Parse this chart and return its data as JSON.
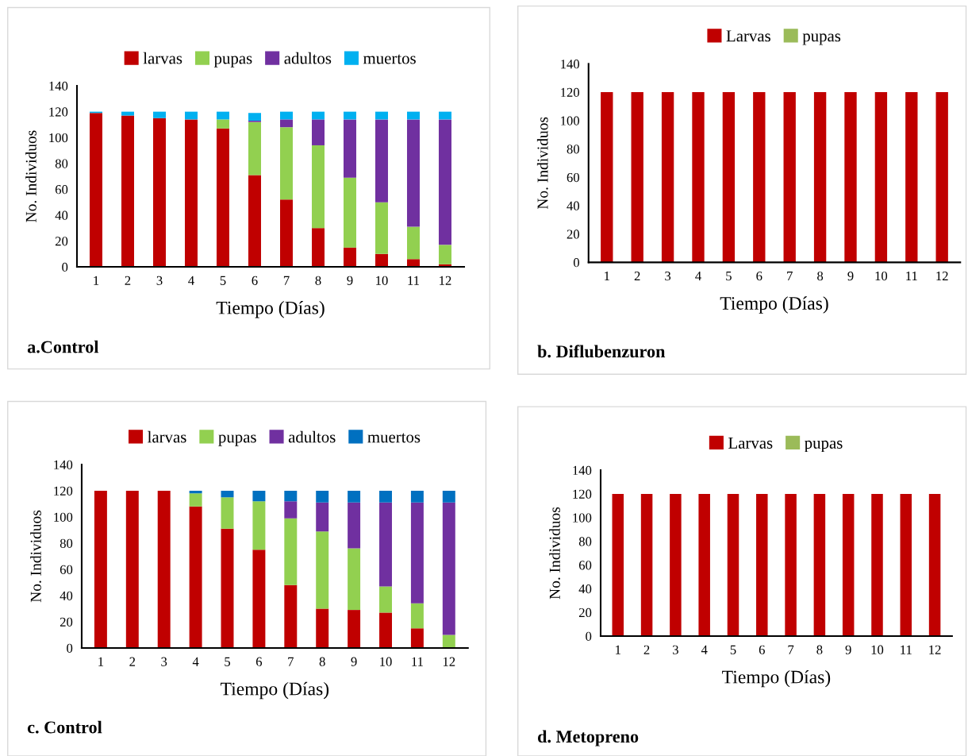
{
  "chart_data": [
    {
      "type": "bar",
      "stacked": true,
      "categories": [
        "1",
        "2",
        "3",
        "4",
        "5",
        "6",
        "7",
        "8",
        "9",
        "10",
        "11",
        "12"
      ],
      "xlabel": "Tiempo (Días)",
      "ylabel": "No. Individuos",
      "ylim": [
        0,
        140
      ],
      "yticks": [
        0,
        20,
        40,
        60,
        80,
        100,
        120,
        140
      ],
      "legend": "top",
      "grid": false,
      "annotations": [
        "a.Control"
      ],
      "series": [
        {
          "name": "larvas",
          "color": "#c00000",
          "values": [
            119,
            117,
            115,
            114,
            107,
            71,
            52,
            30,
            15,
            10,
            6,
            2
          ]
        },
        {
          "name": "pupas",
          "color": "#92d050",
          "values": [
            0,
            0,
            0,
            0,
            7,
            41,
            56,
            64,
            54,
            40,
            25,
            15
          ]
        },
        {
          "name": "adultos",
          "color": "#7030a0",
          "values": [
            0,
            0,
            0,
            0,
            0,
            1,
            6,
            20,
            45,
            64,
            83,
            97
          ]
        },
        {
          "name": "muertos",
          "color": "#00b0f0",
          "values": [
            1,
            3,
            5,
            6,
            6,
            6,
            6,
            6,
            6,
            6,
            6,
            6
          ]
        }
      ]
    },
    {
      "type": "bar",
      "stacked": true,
      "categories": [
        "1",
        "2",
        "3",
        "4",
        "5",
        "6",
        "7",
        "8",
        "9",
        "10",
        "11",
        "12"
      ],
      "xlabel": "Tiempo (Días)",
      "ylabel": "No. Individuos",
      "ylim": [
        0,
        140
      ],
      "yticks": [
        0,
        20,
        40,
        60,
        80,
        100,
        120,
        140
      ],
      "legend": "top",
      "grid": false,
      "annotations": [
        "b. Diflubenzuron"
      ],
      "series": [
        {
          "name": "Larvas",
          "color": "#c00000",
          "values": [
            120,
            120,
            120,
            120,
            120,
            120,
            120,
            120,
            120,
            120,
            120,
            120
          ]
        },
        {
          "name": "pupas",
          "color": "#9bbb59",
          "values": [
            0,
            0,
            0,
            0,
            0,
            0,
            0,
            0,
            0,
            0,
            0,
            0
          ]
        }
      ]
    },
    {
      "type": "bar",
      "stacked": true,
      "categories": [
        "1",
        "2",
        "3",
        "4",
        "5",
        "6",
        "7",
        "8",
        "9",
        "10",
        "11",
        "12"
      ],
      "xlabel": "Tiempo (Días)",
      "ylabel": "No. Individuos",
      "ylim": [
        0,
        140
      ],
      "yticks": [
        0,
        20,
        40,
        60,
        80,
        100,
        120,
        140
      ],
      "legend": "top",
      "grid": false,
      "annotations": [
        "c. Control"
      ],
      "series": [
        {
          "name": "larvas",
          "color": "#c00000",
          "values": [
            120,
            120,
            120,
            108,
            91,
            75,
            48,
            30,
            29,
            27,
            15,
            0
          ]
        },
        {
          "name": "pupas",
          "color": "#92d050",
          "values": [
            0,
            0,
            0,
            10,
            24,
            37,
            51,
            59,
            47,
            20,
            19,
            10
          ]
        },
        {
          "name": "adultos",
          "color": "#7030a0",
          "values": [
            0,
            0,
            0,
            0,
            0,
            0,
            13,
            22,
            35,
            64,
            77,
            101
          ]
        },
        {
          "name": "muertos",
          "color": "#0070c0",
          "values": [
            0,
            0,
            0,
            2,
            5,
            8,
            8,
            9,
            9,
            9,
            9,
            9
          ]
        }
      ]
    },
    {
      "type": "bar",
      "stacked": true,
      "categories": [
        "1",
        "2",
        "3",
        "4",
        "5",
        "6",
        "7",
        "8",
        "9",
        "10",
        "11",
        "12"
      ],
      "xlabel": "Tiempo (Días)",
      "ylabel": "No. Individuos",
      "ylim": [
        0,
        140
      ],
      "yticks": [
        0,
        20,
        40,
        60,
        80,
        100,
        120,
        140
      ],
      "legend": "top",
      "grid": false,
      "annotations": [
        "d. Metopreno"
      ],
      "series": [
        {
          "name": "Larvas",
          "color": "#c00000",
          "values": [
            120,
            120,
            120,
            120,
            120,
            120,
            120,
            120,
            120,
            120,
            120,
            120
          ]
        },
        {
          "name": "pupas",
          "color": "#9bbb59",
          "values": [
            0,
            0,
            0,
            0,
            0,
            0,
            0,
            0,
            0,
            0,
            0,
            0
          ]
        }
      ]
    }
  ]
}
